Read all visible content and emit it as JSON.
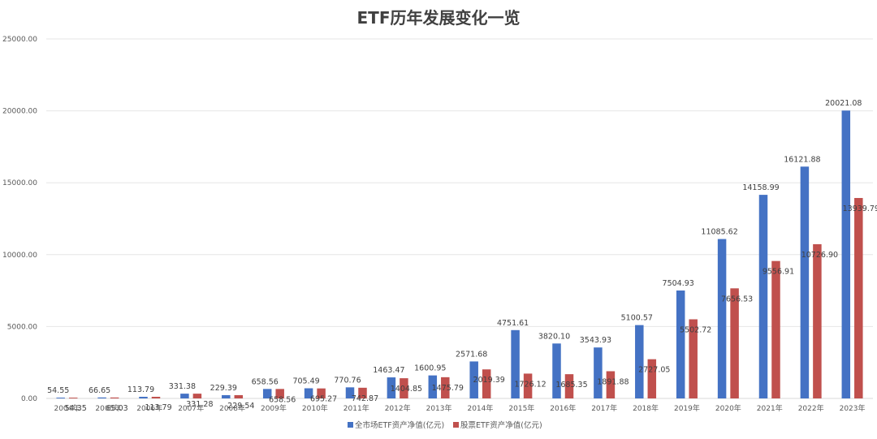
{
  "chart_data": {
    "type": "bar",
    "title": "ETF历年发展变化一览",
    "categories": [
      "2004年",
      "2005年",
      "2006年",
      "2007年",
      "2008年",
      "2009年",
      "2010年",
      "2011年",
      "2012年",
      "2013年",
      "2014年",
      "2015年",
      "2016年",
      "2017年",
      "2018年",
      "2019年",
      "2020年",
      "2021年",
      "2022年",
      "2023年"
    ],
    "series": [
      {
        "name": "全市场ETF资产净值(亿元)",
        "color": "#4472C4",
        "values": [
          54.55,
          66.65,
          113.79,
          331.38,
          229.39,
          658.56,
          705.49,
          770.76,
          1463.47,
          1600.95,
          2571.68,
          4751.61,
          3820.1,
          3543.93,
          5100.57,
          7504.93,
          11085.62,
          14158.99,
          16121.88,
          20021.08
        ],
        "labels": [
          "54.55",
          "66.65",
          "113.79",
          "331.38",
          "229.39",
          "658.56",
          "705.49",
          "770.76",
          "1463.47",
          "1600.95",
          "2571.68",
          "4751.61",
          "3820.10",
          "3543.93",
          "5100.57",
          "7504.93",
          "11085.62",
          "14158.99",
          "16121.88",
          "20021.08"
        ]
      },
      {
        "name": "股票ETF资产净值(亿元)",
        "color": "#C0504D",
        "values": [
          54.35,
          65.03,
          113.79,
          331.28,
          229.54,
          658.56,
          695.27,
          742.87,
          1404.85,
          1475.79,
          2019.39,
          1726.12,
          1685.35,
          1891.88,
          2727.05,
          5502.72,
          7656.53,
          9556.91,
          10726.9,
          13939.79
        ],
        "labels": [
          "54.35",
          "65.03",
          "113.79",
          "331.28",
          "229.54",
          "658.56",
          "695.27",
          "742.87",
          "1404.85",
          "1475.79",
          "2019.39",
          "1726.12",
          "1685.35",
          "1891.88",
          "2727.05",
          "5502.72",
          "7656.53",
          "9556.91",
          "10726.90",
          "13939.79"
        ]
      }
    ],
    "ylim": [
      0,
      25000
    ],
    "yticks": [
      0,
      5000,
      10000,
      15000,
      20000,
      25000
    ],
    "ytick_labels": [
      "0.00",
      "5000.00",
      "10000.00",
      "15000.00",
      "20000.00",
      "25000.00"
    ],
    "grid": true,
    "legend": "bottom-center"
  }
}
